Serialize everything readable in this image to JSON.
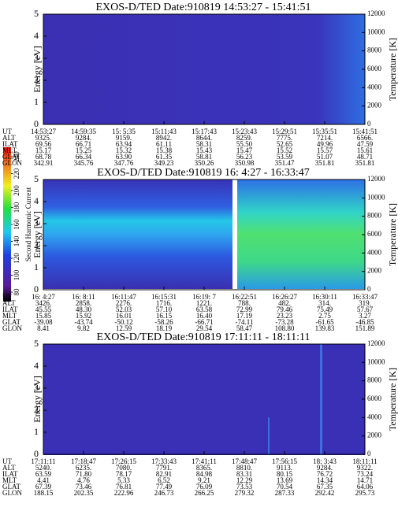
{
  "chart_data": [
    {
      "type": "spectrogram",
      "title": "EXOS-D/TED  Date:910819  14:53:27 - 15:41:51",
      "ylabel": "Energy [eV]",
      "y2label": "Temperature [K]",
      "ylim": [
        0,
        5
      ],
      "yticks": [
        0,
        1,
        2,
        3,
        4,
        5
      ],
      "y2lim": [
        0,
        12000
      ],
      "y2ticks": [
        0,
        2000,
        4000,
        6000,
        8000,
        10000,
        12000
      ],
      "table": {
        "rows": [
          {
            "label": "UT",
            "values": [
              "14:53:27",
              "14:59:35",
              "15: 5:35",
              "15:11:43",
              "15:17:43",
              "15:23:43",
              "15:29:51",
              "15:35:51",
              "15:41:51"
            ]
          },
          {
            "label": "ALT",
            "values": [
              "9325.",
              "9284.",
              "9159.",
              "8942.",
              "8644.",
              "8259.",
              "7775.",
              "7214.",
              "6566."
            ]
          },
          {
            "label": "ILAT",
            "values": [
              "69.56",
              "66.71",
              "63.94",
              "61.11",
              "58.31",
              "55.50",
              "52.65",
              "49.96",
              "47.59"
            ]
          },
          {
            "label": "MLT",
            "values": [
              "15.17",
              "15.25",
              "15.32",
              "15.38",
              "15.43",
              "15.47",
              "15.52",
              "15.57",
              "15.61"
            ]
          },
          {
            "label": "GLAT",
            "values": [
              "68.78",
              "66.34",
              "63.90",
              "61.35",
              "58.81",
              "56.23",
              "53.59",
              "51.07",
              "48.71"
            ]
          },
          {
            "label": "GLON",
            "values": [
              "342.91",
              "345.76",
              "347.76",
              "349.23",
              "350.26",
              "350.98",
              "351.47",
              "351.81",
              "351.81"
            ]
          }
        ]
      }
    },
    {
      "type": "spectrogram",
      "title": "EXOS-D/TED  Date:910819  16: 4:27 - 16:33:47",
      "ylabel": "Energy [eV]",
      "y2label": "Temperature [K]",
      "ylim": [
        0,
        5
      ],
      "yticks": [
        0,
        1,
        2,
        3,
        4,
        5
      ],
      "y2lim": [
        0,
        12000
      ],
      "y2ticks": [
        0,
        2000,
        4000,
        6000,
        8000,
        10000,
        12000
      ],
      "colorbar": {
        "label": "Second Harmonic Current",
        "lim": [
          80,
          240
        ],
        "ticks": [
          80,
          100,
          120,
          140,
          160,
          180,
          200,
          220,
          240
        ]
      },
      "table": {
        "rows": [
          {
            "label": "UT",
            "values": [
              "16: 4:27",
              "16: 8:11",
              "16:11:47",
              "16:15:31",
              "16:19: 7",
              "16:22:51",
              "16:26:27",
              "16:30:11",
              "16:33:47"
            ]
          },
          {
            "label": "ALT",
            "values": [
              "3426.",
              "2858.",
              "2276.",
              "1716.",
              "1221.",
              "788.",
              "482.",
              "314.",
              "319."
            ]
          },
          {
            "label": "ILAT",
            "values": [
              "45.55",
              "48.30",
              "52.03",
              "57.10",
              "63.58",
              "72.99",
              "79.46",
              "75.49",
              "57.67"
            ]
          },
          {
            "label": "MLT",
            "values": [
              "15.85",
              "15.92",
              "16.01",
              "16.15",
              "16.40",
              "17.19",
              "23.23",
              "2.75",
              "3.27"
            ]
          },
          {
            "label": "GLAT",
            "values": [
              "-39.08",
              "-43.74",
              "-50.12",
              "-58.26",
              "-66.71",
              "-74.11",
              "-73.28",
              "-61.65",
              "-46.85"
            ]
          },
          {
            "label": "GLON",
            "values": [
              "8.41",
              "9.82",
              "12.59",
              "18.19",
              "29.54",
              "58.47",
              "108.80",
              "139.83",
              "151.89"
            ]
          }
        ]
      }
    },
    {
      "type": "spectrogram",
      "title": "EXOS-D/TED  Date:910819  17:11:11 - 18:11:11",
      "ylabel": "Energy [eV]",
      "y2label": "Temperature [K]",
      "ylim": [
        0,
        5
      ],
      "yticks": [
        0,
        1,
        2,
        3,
        4,
        5
      ],
      "y2lim": [
        0,
        12000
      ],
      "y2ticks": [
        0,
        2000,
        4000,
        6000,
        8000,
        10000,
        12000
      ],
      "table": {
        "rows": [
          {
            "label": "UT",
            "values": [
              "17:11:11",
              "17:18:47",
              "17:26:15",
              "17:33:43",
              "17:41:11",
              "17:48:47",
              "17:56:15",
              "18: 3:43",
              "18:11:11"
            ]
          },
          {
            "label": "ALT",
            "values": [
              "5240.",
              "6235.",
              "7080.",
              "7791.",
              "8365.",
              "8810.",
              "9113.",
              "9284.",
              "9322."
            ]
          },
          {
            "label": "ILAT",
            "values": [
              "63.59",
              "71.80",
              "78.17",
              "82.91",
              "84.98",
              "83.31",
              "80.15",
              "76.72",
              "73.24"
            ]
          },
          {
            "label": "MLT",
            "values": [
              "4.41",
              "4.76",
              "5.33",
              "6.52",
              "9.21",
              "12.29",
              "13.69",
              "14.34",
              "14.71"
            ]
          },
          {
            "label": "GLAT",
            "values": [
              "67.39",
              "73.46",
              "76.81",
              "77.49",
              "76.09",
              "73.53",
              "70.54",
              "67.35",
              "64.06"
            ]
          },
          {
            "label": "GLON",
            "values": [
              "188.15",
              "202.35",
              "222.96",
              "246.73",
              "266.25",
              "279.32",
              "287.33",
              "292.42",
              "295.73"
            ]
          }
        ]
      }
    }
  ]
}
